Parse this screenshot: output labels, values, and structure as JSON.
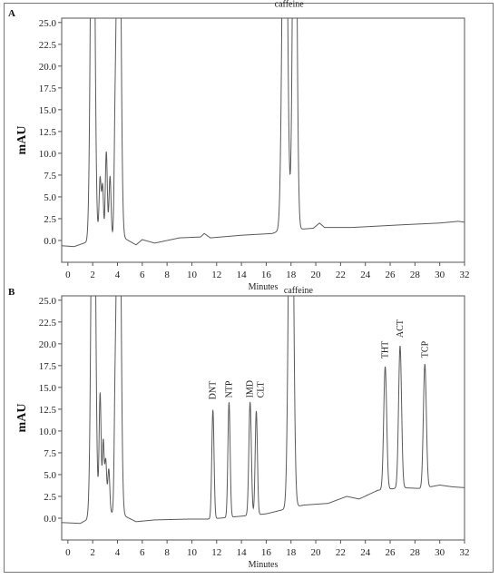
{
  "chart_data": [
    {
      "panel": "A",
      "type": "line",
      "xlabel": "Minutes",
      "ylabel": "mAU",
      "xlim": [
        -0.5,
        32
      ],
      "ylim": [
        -2.5,
        25.5
      ],
      "xticks": [
        0,
        2,
        4,
        6,
        8,
        10,
        12,
        14,
        16,
        18,
        20,
        22,
        24,
        26,
        28,
        30,
        32
      ],
      "yticks": [
        0.0,
        2.5,
        5.0,
        7.5,
        10.0,
        12.5,
        15.0,
        17.5,
        20.0,
        22.5,
        25.0
      ],
      "baseline": [
        [
          -0.5,
          -0.6
        ],
        [
          0.5,
          -0.7
        ],
        [
          1.5,
          -0.2
        ],
        [
          1.8,
          0.5
        ],
        [
          4.5,
          0.3
        ],
        [
          5.5,
          -0.5
        ],
        [
          6.0,
          0.1
        ],
        [
          7.0,
          -0.3
        ],
        [
          9.0,
          0.3
        ],
        [
          10.7,
          0.4
        ],
        [
          11.0,
          0.8
        ],
        [
          11.5,
          0.3
        ],
        [
          14.0,
          0.6
        ],
        [
          16.5,
          0.8
        ],
        [
          17.2,
          1.2
        ],
        [
          18.8,
          1.3
        ],
        [
          19.8,
          1.4
        ],
        [
          20.3,
          2.0
        ],
        [
          20.7,
          1.5
        ],
        [
          23.0,
          1.5
        ],
        [
          27.0,
          1.8
        ],
        [
          30.0,
          2.0
        ],
        [
          31.5,
          2.2
        ],
        [
          32.0,
          2.1
        ]
      ],
      "peaks": [
        {
          "rt": 2.0,
          "h": 60.0,
          "w": 0.15
        },
        {
          "rt": 2.6,
          "h": 6.8,
          "w": 0.08
        },
        {
          "rt": 2.8,
          "h": 5.8,
          "w": 0.07
        },
        {
          "rt": 3.1,
          "h": 9.8,
          "w": 0.08
        },
        {
          "rt": 3.4,
          "h": 7.0,
          "w": 0.08
        },
        {
          "rt": 3.8,
          "h": 8.5,
          "w": 0.07
        },
        {
          "rt": 4.1,
          "h": 60.0,
          "w": 0.15
        },
        {
          "rt": 17.5,
          "h": 60.0,
          "w": 0.18
        },
        {
          "rt": 18.3,
          "h": 60.0,
          "w": 0.15
        }
      ],
      "annotations": [
        {
          "text": "caffeine",
          "x": 17.85,
          "y": 26.8
        }
      ]
    },
    {
      "panel": "B",
      "type": "line",
      "xlabel": "Minutes",
      "ylabel": "mAU",
      "xlim": [
        -0.5,
        32
      ],
      "ylim": [
        -2.5,
        25.5
      ],
      "xticks": [
        0,
        2,
        4,
        6,
        8,
        10,
        12,
        14,
        16,
        18,
        20,
        22,
        24,
        26,
        28,
        30,
        32
      ],
      "yticks": [
        0.0,
        2.5,
        5.0,
        7.5,
        10.0,
        12.5,
        15.0,
        17.5,
        20.0,
        22.5,
        25.0
      ],
      "baseline": [
        [
          -0.5,
          -0.5
        ],
        [
          1.0,
          -0.6
        ],
        [
          1.5,
          -0.2
        ],
        [
          2.0,
          1.0
        ],
        [
          4.5,
          0.3
        ],
        [
          5.5,
          -0.4
        ],
        [
          7.0,
          -0.2
        ],
        [
          10.0,
          -0.1
        ],
        [
          11.5,
          -0.1
        ],
        [
          16.0,
          0.5
        ],
        [
          18.0,
          1.2
        ],
        [
          19.0,
          1.5
        ],
        [
          21.0,
          1.7
        ],
        [
          22.5,
          2.5
        ],
        [
          23.5,
          2.2
        ],
        [
          25.0,
          3.2
        ],
        [
          27.0,
          3.5
        ],
        [
          28.5,
          3.4
        ],
        [
          30.0,
          3.8
        ],
        [
          31.0,
          3.6
        ],
        [
          32.0,
          3.5
        ]
      ],
      "peaks": [
        {
          "rt": 2.05,
          "h": 60.0,
          "w": 0.15
        },
        {
          "rt": 2.6,
          "h": 13.5,
          "w": 0.08
        },
        {
          "rt": 2.85,
          "h": 8.0,
          "w": 0.07
        },
        {
          "rt": 3.05,
          "h": 6.0,
          "w": 0.08
        },
        {
          "rt": 3.3,
          "h": 5.0,
          "w": 0.08
        },
        {
          "rt": 3.8,
          "h": 8.5,
          "w": 0.07
        },
        {
          "rt": 4.1,
          "h": 60.0,
          "w": 0.15
        },
        {
          "rt": 11.7,
          "h": 12.5,
          "w": 0.09
        },
        {
          "rt": 13.0,
          "h": 13.2,
          "w": 0.09
        },
        {
          "rt": 14.7,
          "h": 13.0,
          "w": 0.1
        },
        {
          "rt": 15.2,
          "h": 11.9,
          "w": 0.09
        },
        {
          "rt": 18.0,
          "h": 60.0,
          "w": 0.17
        },
        {
          "rt": 25.6,
          "h": 14.1,
          "w": 0.12
        },
        {
          "rt": 26.8,
          "h": 16.3,
          "w": 0.12
        },
        {
          "rt": 28.8,
          "h": 14.2,
          "w": 0.12
        }
      ],
      "annotations": [
        {
          "text": "caffeine",
          "x": 18.6,
          "y": 25.8,
          "rotate": false
        },
        {
          "text": "DNT",
          "x": 11.7,
          "y": 13.6,
          "rotate": true
        },
        {
          "text": "NTP",
          "x": 13.0,
          "y": 13.8,
          "rotate": true
        },
        {
          "text": "IMD",
          "x": 14.7,
          "y": 13.8,
          "rotate": true
        },
        {
          "text": "CLT",
          "x": 15.55,
          "y": 13.8,
          "rotate": true
        },
        {
          "text": "THT",
          "x": 25.6,
          "y": 18.3,
          "rotate": true
        },
        {
          "text": "ACT",
          "x": 26.8,
          "y": 20.7,
          "rotate": true
        },
        {
          "text": "TCP",
          "x": 28.8,
          "y": 18.4,
          "rotate": true
        }
      ]
    }
  ]
}
